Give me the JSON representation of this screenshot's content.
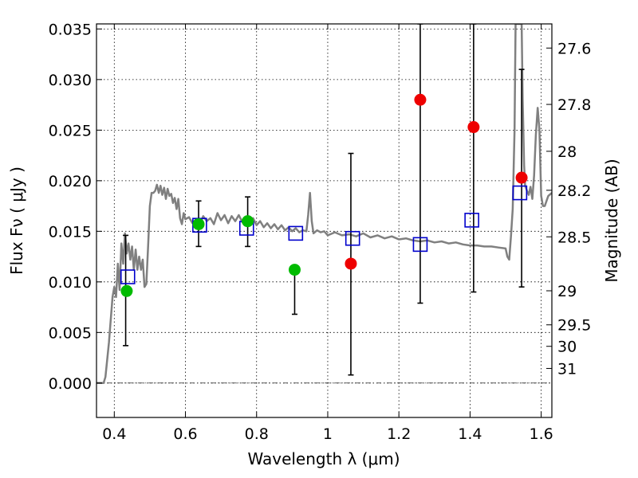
{
  "chart_data": {
    "type": "scatter",
    "xlabel": "Wavelength  λ (μm)",
    "ylabel": "Flux  Fν  ( μJy )",
    "y2label": "Magnitude (AB)",
    "xlim": [
      0.35,
      1.63
    ],
    "ylim": [
      -0.0034,
      0.0355
    ],
    "grid": true,
    "x_ticks": [
      {
        "v": 0.4,
        "label": "0.4"
      },
      {
        "v": 0.6,
        "label": "0.6"
      },
      {
        "v": 0.8,
        "label": "0.8"
      },
      {
        "v": 1.0,
        "label": "1"
      },
      {
        "v": 1.2,
        "label": "1.2"
      },
      {
        "v": 1.4,
        "label": "1.4"
      },
      {
        "v": 1.6,
        "label": "1.6"
      }
    ],
    "y_ticks": [
      {
        "v": 0.0,
        "label": "0.000"
      },
      {
        "v": 0.005,
        "label": "0.005"
      },
      {
        "v": 0.01,
        "label": "0.010"
      },
      {
        "v": 0.015,
        "label": "0.015"
      },
      {
        "v": 0.02,
        "label": "0.020"
      },
      {
        "v": 0.025,
        "label": "0.025"
      },
      {
        "v": 0.03,
        "label": "0.030"
      },
      {
        "v": 0.035,
        "label": "0.035"
      }
    ],
    "mag_ticks": [
      {
        "mag": 27.6,
        "label": "27.6"
      },
      {
        "mag": 27.8,
        "label": "27.8"
      },
      {
        "mag": 28.0,
        "label": "28"
      },
      {
        "mag": 28.2,
        "label": "28.2"
      },
      {
        "mag": 28.5,
        "label": "28.5"
      },
      {
        "mag": 29.0,
        "label": "29"
      },
      {
        "mag": 29.5,
        "label": "29.5"
      },
      {
        "mag": 30.0,
        "label": "30"
      },
      {
        "mag": 31.0,
        "label": "31"
      }
    ],
    "colors": {
      "template": "#808080",
      "green": "#00bb00",
      "red": "#ee0000",
      "model": "#0000cc",
      "errorbar": "#000000"
    },
    "series": [
      {
        "kind": "line",
        "points": [
          [
            0.35,
            0
          ],
          [
            0.37,
            0
          ],
          [
            0.375,
            0.0006
          ],
          [
            0.385,
            0.004
          ],
          [
            0.395,
            0.0085
          ],
          [
            0.4,
            0.0095
          ],
          [
            0.405,
            0.0085
          ],
          [
            0.41,
            0.0118
          ],
          [
            0.415,
            0.0092
          ],
          [
            0.42,
            0.0138
          ],
          [
            0.425,
            0.0118
          ],
          [
            0.43,
            0.0148
          ],
          [
            0.435,
            0.0128
          ],
          [
            0.44,
            0.0138
          ],
          [
            0.445,
            0.0122
          ],
          [
            0.45,
            0.0135
          ],
          [
            0.455,
            0.0112
          ],
          [
            0.46,
            0.0132
          ],
          [
            0.465,
            0.0112
          ],
          [
            0.47,
            0.0125
          ],
          [
            0.475,
            0.0112
          ],
          [
            0.48,
            0.0122
          ],
          [
            0.485,
            0.0095
          ],
          [
            0.49,
            0.0098
          ],
          [
            0.495,
            0.0135
          ],
          [
            0.5,
            0.0175
          ],
          [
            0.505,
            0.0188
          ],
          [
            0.51,
            0.0188
          ],
          [
            0.515,
            0.019
          ],
          [
            0.52,
            0.0196
          ],
          [
            0.525,
            0.0188
          ],
          [
            0.53,
            0.0195
          ],
          [
            0.535,
            0.0186
          ],
          [
            0.54,
            0.0193
          ],
          [
            0.545,
            0.0182
          ],
          [
            0.55,
            0.0192
          ],
          [
            0.555,
            0.0185
          ],
          [
            0.56,
            0.0187
          ],
          [
            0.565,
            0.0178
          ],
          [
            0.57,
            0.0183
          ],
          [
            0.575,
            0.0172
          ],
          [
            0.58,
            0.0182
          ],
          [
            0.585,
            0.0163
          ],
          [
            0.59,
            0.0157
          ],
          [
            0.595,
            0.0168
          ],
          [
            0.6,
            0.0162
          ],
          [
            0.61,
            0.0164
          ],
          [
            0.62,
            0.0158
          ],
          [
            0.63,
            0.0162
          ],
          [
            0.64,
            0.0156
          ],
          [
            0.65,
            0.0165
          ],
          [
            0.66,
            0.016
          ],
          [
            0.67,
            0.0163
          ],
          [
            0.68,
            0.0157
          ],
          [
            0.69,
            0.0168
          ],
          [
            0.7,
            0.0161
          ],
          [
            0.71,
            0.0166
          ],
          [
            0.72,
            0.0158
          ],
          [
            0.73,
            0.0165
          ],
          [
            0.74,
            0.016
          ],
          [
            0.75,
            0.0166
          ],
          [
            0.76,
            0.0159
          ],
          [
            0.77,
            0.0162
          ],
          [
            0.78,
            0.0157
          ],
          [
            0.79,
            0.0163
          ],
          [
            0.8,
            0.0156
          ],
          [
            0.81,
            0.016
          ],
          [
            0.82,
            0.0154
          ],
          [
            0.83,
            0.0158
          ],
          [
            0.84,
            0.0153
          ],
          [
            0.85,
            0.0157
          ],
          [
            0.86,
            0.0152
          ],
          [
            0.87,
            0.0156
          ],
          [
            0.88,
            0.0151
          ],
          [
            0.89,
            0.0154
          ],
          [
            0.9,
            0.015
          ],
          [
            0.91,
            0.0153
          ],
          [
            0.92,
            0.0149
          ],
          [
            0.93,
            0.0151
          ],
          [
            0.94,
            0.015
          ],
          [
            0.945,
            0.0166
          ],
          [
            0.95,
            0.0188
          ],
          [
            0.955,
            0.016
          ],
          [
            0.96,
            0.0148
          ],
          [
            0.97,
            0.0151
          ],
          [
            0.98,
            0.0149
          ],
          [
            0.99,
            0.015
          ],
          [
            1.0,
            0.0146
          ],
          [
            1.02,
            0.0149
          ],
          [
            1.04,
            0.0146
          ],
          [
            1.06,
            0.0147
          ],
          [
            1.08,
            0.0145
          ],
          [
            1.1,
            0.0148
          ],
          [
            1.12,
            0.0144
          ],
          [
            1.14,
            0.0146
          ],
          [
            1.16,
            0.0143
          ],
          [
            1.18,
            0.0145
          ],
          [
            1.2,
            0.0142
          ],
          [
            1.22,
            0.0143
          ],
          [
            1.24,
            0.0141
          ],
          [
            1.26,
            0.014
          ],
          [
            1.28,
            0.0141
          ],
          [
            1.3,
            0.0139
          ],
          [
            1.32,
            0.014
          ],
          [
            1.34,
            0.0138
          ],
          [
            1.36,
            0.0139
          ],
          [
            1.38,
            0.0137
          ],
          [
            1.4,
            0.0136
          ],
          [
            1.42,
            0.0136
          ],
          [
            1.44,
            0.0135
          ],
          [
            1.46,
            0.0135
          ],
          [
            1.48,
            0.0134
          ],
          [
            1.5,
            0.0133
          ],
          [
            1.505,
            0.0125
          ],
          [
            1.51,
            0.0122
          ],
          [
            1.515,
            0.0145
          ],
          [
            1.52,
            0.0172
          ],
          [
            1.525,
            0.025
          ],
          [
            1.528,
            0.0355
          ],
          [
            1.545,
            0.0355
          ],
          [
            1.548,
            0.028
          ],
          [
            1.552,
            0.0215
          ],
          [
            1.555,
            0.0195
          ],
          [
            1.56,
            0.019
          ],
          [
            1.565,
            0.0186
          ],
          [
            1.57,
            0.0194
          ],
          [
            1.575,
            0.0182
          ],
          [
            1.58,
            0.0205
          ],
          [
            1.585,
            0.0245
          ],
          [
            1.59,
            0.0272
          ],
          [
            1.595,
            0.025
          ],
          [
            1.6,
            0.0185
          ],
          [
            1.605,
            0.0175
          ],
          [
            1.61,
            0.0175
          ],
          [
            1.615,
            0.018
          ],
          [
            1.62,
            0.0185
          ],
          [
            1.63,
            0.0188
          ]
        ]
      },
      {
        "kind": "points",
        "color": "green",
        "points": [
          [
            0.435,
            0.0091
          ],
          [
            0.637,
            0.0157
          ],
          [
            0.775,
            0.016
          ],
          [
            0.907,
            0.0112
          ]
        ]
      },
      {
        "kind": "points",
        "color": "red",
        "points": [
          [
            1.065,
            0.0118
          ],
          [
            1.26,
            0.028
          ],
          [
            1.41,
            0.0253
          ],
          [
            1.545,
            0.0203
          ]
        ]
      },
      {
        "kind": "model",
        "color": "model",
        "points": [
          [
            0.438,
            0.0105
          ],
          [
            0.64,
            0.0156
          ],
          [
            0.772,
            0.0153
          ],
          [
            0.91,
            0.0148
          ],
          [
            1.07,
            0.0143
          ],
          [
            1.26,
            0.0137
          ],
          [
            1.405,
            0.0161
          ],
          [
            1.54,
            0.0188
          ]
        ]
      },
      {
        "kind": "errorbars",
        "bars": [
          {
            "x": 0.432,
            "low": 0.0037,
            "high": 0.0146
          },
          {
            "x": 0.637,
            "low": 0.0135,
            "high": 0.018
          },
          {
            "x": 0.775,
            "low": 0.0135,
            "high": 0.0184
          },
          {
            "x": 0.907,
            "low": 0.0068,
            "high": 0.0113
          },
          {
            "x": 1.065,
            "low": 0.0008,
            "high": 0.0227
          },
          {
            "x": 1.26,
            "low": 0.0079,
            "high": 0.0355
          },
          {
            "x": 1.41,
            "low": 0.009,
            "high": 0.0355
          },
          {
            "x": 1.545,
            "low": 0.0095,
            "high": 0.031
          }
        ]
      }
    ]
  }
}
